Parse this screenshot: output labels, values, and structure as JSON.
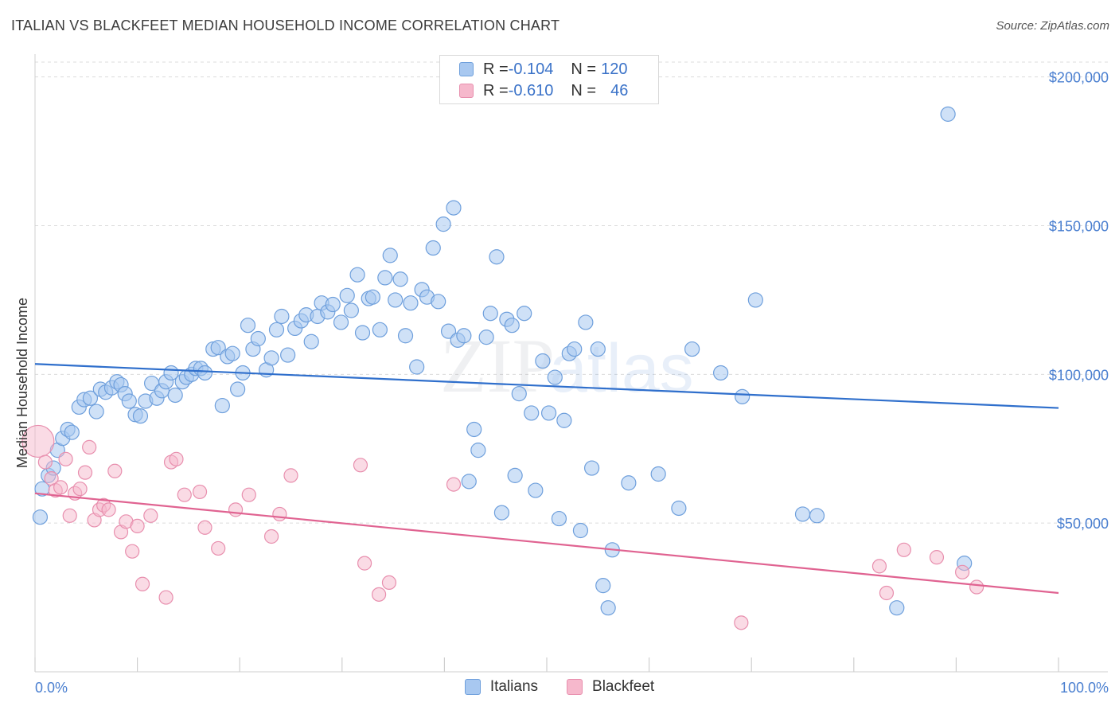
{
  "title": "ITALIAN VS BLACKFEET MEDIAN HOUSEHOLD INCOME CORRELATION CHART",
  "source": "Source: ZipAtlas.com",
  "colors": {
    "italians_fill": "#a8c8f0",
    "italians_stroke": "#6e9fdc",
    "italians_line": "#2f6fcc",
    "blackfeet_fill": "#f6b8cc",
    "blackfeet_stroke": "#e88fae",
    "blackfeet_line": "#e06391",
    "tick_label": "#4a7fd0"
  },
  "legend": {
    "italians": {
      "r_label": "R = ",
      "r_value": "-0.104",
      "n_label": "N = ",
      "n_value": "120"
    },
    "blackfeet": {
      "r_label": "R = ",
      "r_value": "-0.610",
      "n_label": "N = ",
      "n_value": "46"
    }
  },
  "bottom_legend": {
    "italians": "Italians",
    "blackfeet": "Blackfeet"
  },
  "chart_data": {
    "type": "scatter",
    "title": "ITALIAN VS BLACKFEET MEDIAN HOUSEHOLD INCOME CORRELATION CHART",
    "xlabel": "",
    "ylabel": "Median Household Income",
    "xlim": [
      0,
      100
    ],
    "ylim": [
      0,
      205000
    ],
    "x_tick_labels": [
      "0.0%",
      "100.0%"
    ],
    "y_ticks": [
      50000,
      100000,
      150000,
      200000
    ],
    "y_tick_labels": [
      "$50,000",
      "$100,000",
      "$150,000",
      "$200,000"
    ],
    "grid": true,
    "legend_position": "top-center",
    "series": [
      {
        "name": "Italians",
        "trend": {
          "x": [
            0,
            100
          ],
          "y": [
            103500,
            88700
          ]
        },
        "points": [
          [
            0.5,
            52000
          ],
          [
            0.7,
            61500
          ],
          [
            1.3,
            66000
          ],
          [
            1.8,
            68500
          ],
          [
            2.2,
            74500
          ],
          [
            2.7,
            78500
          ],
          [
            3.2,
            81500
          ],
          [
            3.6,
            80500
          ],
          [
            4.3,
            89000
          ],
          [
            4.8,
            91500
          ],
          [
            5.4,
            92000
          ],
          [
            6.0,
            87500
          ],
          [
            6.4,
            95000
          ],
          [
            6.9,
            94000
          ],
          [
            7.5,
            95500
          ],
          [
            8.0,
            97500
          ],
          [
            8.4,
            96500
          ],
          [
            8.8,
            93500
          ],
          [
            9.2,
            91000
          ],
          [
            9.8,
            86500
          ],
          [
            10.3,
            86000
          ],
          [
            10.8,
            91000
          ],
          [
            11.4,
            97000
          ],
          [
            11.9,
            92000
          ],
          [
            12.4,
            94500
          ],
          [
            12.8,
            97500
          ],
          [
            13.3,
            100500
          ],
          [
            13.7,
            93000
          ],
          [
            14.4,
            97500
          ],
          [
            14.8,
            99000
          ],
          [
            15.3,
            100000
          ],
          [
            15.7,
            102000
          ],
          [
            16.2,
            102000
          ],
          [
            16.6,
            100500
          ],
          [
            17.4,
            108500
          ],
          [
            17.9,
            109000
          ],
          [
            18.3,
            89500
          ],
          [
            18.8,
            106000
          ],
          [
            19.3,
            107000
          ],
          [
            19.8,
            95000
          ],
          [
            20.3,
            100500
          ],
          [
            20.8,
            116500
          ],
          [
            21.3,
            108500
          ],
          [
            21.8,
            112000
          ],
          [
            22.6,
            101500
          ],
          [
            23.1,
            105500
          ],
          [
            23.6,
            115000
          ],
          [
            24.1,
            119500
          ],
          [
            24.7,
            106500
          ],
          [
            25.4,
            115500
          ],
          [
            26.0,
            118000
          ],
          [
            26.5,
            120000
          ],
          [
            27.0,
            111000
          ],
          [
            27.6,
            119500
          ],
          [
            28.0,
            124000
          ],
          [
            28.6,
            121000
          ],
          [
            29.1,
            123500
          ],
          [
            29.9,
            117500
          ],
          [
            30.5,
            126500
          ],
          [
            30.9,
            121500
          ],
          [
            31.5,
            133500
          ],
          [
            32.0,
            114000
          ],
          [
            32.6,
            125500
          ],
          [
            33.0,
            126000
          ],
          [
            33.7,
            115000
          ],
          [
            34.2,
            132500
          ],
          [
            34.7,
            140000
          ],
          [
            35.2,
            125000
          ],
          [
            35.7,
            132000
          ],
          [
            36.2,
            113000
          ],
          [
            36.7,
            124000
          ],
          [
            37.3,
            102500
          ],
          [
            37.8,
            128500
          ],
          [
            38.3,
            126000
          ],
          [
            38.9,
            142500
          ],
          [
            39.4,
            124500
          ],
          [
            39.9,
            150500
          ],
          [
            40.4,
            114500
          ],
          [
            40.9,
            156000
          ],
          [
            41.3,
            111500
          ],
          [
            41.9,
            113000
          ],
          [
            42.4,
            64000
          ],
          [
            42.9,
            81500
          ],
          [
            43.3,
            74500
          ],
          [
            44.1,
            112500
          ],
          [
            44.5,
            120500
          ],
          [
            45.1,
            139500
          ],
          [
            45.6,
            53500
          ],
          [
            46.1,
            118500
          ],
          [
            46.6,
            116500
          ],
          [
            46.9,
            66000
          ],
          [
            47.3,
            93500
          ],
          [
            47.8,
            120500
          ],
          [
            48.5,
            87000
          ],
          [
            48.9,
            61000
          ],
          [
            49.6,
            104500
          ],
          [
            50.2,
            87000
          ],
          [
            50.8,
            99000
          ],
          [
            51.2,
            51500
          ],
          [
            51.7,
            84500
          ],
          [
            52.2,
            107000
          ],
          [
            52.7,
            108500
          ],
          [
            53.3,
            47500
          ],
          [
            53.8,
            117500
          ],
          [
            54.4,
            68500
          ],
          [
            55.0,
            108500
          ],
          [
            55.5,
            29000
          ],
          [
            56.0,
            21500
          ],
          [
            56.4,
            41000
          ],
          [
            58.0,
            63500
          ],
          [
            60.9,
            66500
          ],
          [
            62.9,
            55000
          ],
          [
            64.2,
            108500
          ],
          [
            67.0,
            100500
          ],
          [
            69.1,
            92500
          ],
          [
            70.4,
            125000
          ],
          [
            75.0,
            53000
          ],
          [
            76.4,
            52500
          ],
          [
            84.2,
            21500
          ],
          [
            89.2,
            187500
          ],
          [
            90.8,
            36500
          ]
        ]
      },
      {
        "name": "Blackfeet",
        "trend": {
          "x": [
            0,
            100
          ],
          "y": [
            60000,
            26500
          ]
        },
        "points": [
          [
            0.3,
            77500
          ],
          [
            1.0,
            70500
          ],
          [
            1.6,
            65000
          ],
          [
            2.0,
            61000
          ],
          [
            2.5,
            62000
          ],
          [
            3.0,
            71500
          ],
          [
            3.4,
            52500
          ],
          [
            3.9,
            60000
          ],
          [
            4.4,
            61500
          ],
          [
            4.9,
            67000
          ],
          [
            5.3,
            75500
          ],
          [
            5.8,
            51000
          ],
          [
            6.3,
            54500
          ],
          [
            6.7,
            56000
          ],
          [
            7.2,
            54500
          ],
          [
            7.8,
            67500
          ],
          [
            8.4,
            47000
          ],
          [
            8.9,
            50500
          ],
          [
            9.5,
            40500
          ],
          [
            10.0,
            49000
          ],
          [
            10.5,
            29500
          ],
          [
            11.3,
            52500
          ],
          [
            12.8,
            25000
          ],
          [
            13.3,
            70500
          ],
          [
            13.8,
            71500
          ],
          [
            14.6,
            59500
          ],
          [
            16.1,
            60500
          ],
          [
            16.6,
            48500
          ],
          [
            17.9,
            41500
          ],
          [
            19.6,
            54500
          ],
          [
            20.9,
            59500
          ],
          [
            23.1,
            45500
          ],
          [
            23.9,
            53000
          ],
          [
            25.0,
            66000
          ],
          [
            31.8,
            69500
          ],
          [
            32.2,
            36500
          ],
          [
            33.6,
            26000
          ],
          [
            34.6,
            30000
          ],
          [
            40.9,
            63000
          ],
          [
            69.0,
            16500
          ],
          [
            82.5,
            35500
          ],
          [
            83.2,
            26500
          ],
          [
            84.9,
            41000
          ],
          [
            88.1,
            38500
          ],
          [
            90.6,
            33500
          ],
          [
            92.0,
            28500
          ]
        ]
      }
    ]
  }
}
